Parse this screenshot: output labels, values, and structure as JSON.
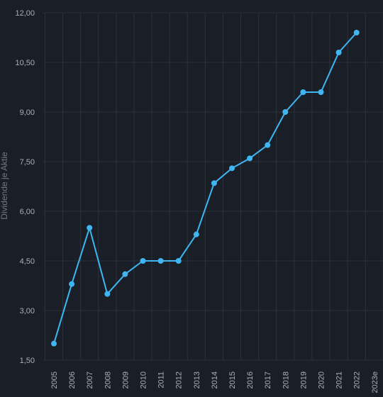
{
  "colors": {
    "background": "#1a1f27",
    "grid": "#2b323d",
    "line": "#3fb6f2",
    "text": "#a7afbb",
    "ylabel": "#6f7784"
  },
  "chart_data": {
    "type": "line",
    "title": "",
    "xlabel": "",
    "ylabel": "Dividende je Aktie",
    "categories": [
      "2005",
      "2006",
      "2007",
      "2008",
      "2009",
      "2010",
      "2011",
      "2012",
      "2013",
      "2014",
      "2015",
      "2016",
      "2017",
      "2018",
      "2019",
      "2020",
      "2021",
      "2022",
      "2023e"
    ],
    "series": [
      {
        "values": [
          2.0,
          3.8,
          5.5,
          3.5,
          4.1,
          4.5,
          4.5,
          4.5,
          5.3,
          6.85,
          7.3,
          7.6,
          8.0,
          9.0,
          9.6,
          9.6,
          10.8,
          11.4,
          null
        ]
      }
    ],
    "ylim": [
      1.5,
      12.0
    ],
    "yticks": [
      "1,50",
      "3,00",
      "4,50",
      "6,00",
      "7,50",
      "9,00",
      "10,50",
      "12,00"
    ],
    "ytick_values": [
      1.5,
      3.0,
      4.5,
      6.0,
      7.5,
      9.0,
      10.5,
      12.0
    ],
    "grid": true,
    "legend": "none"
  }
}
